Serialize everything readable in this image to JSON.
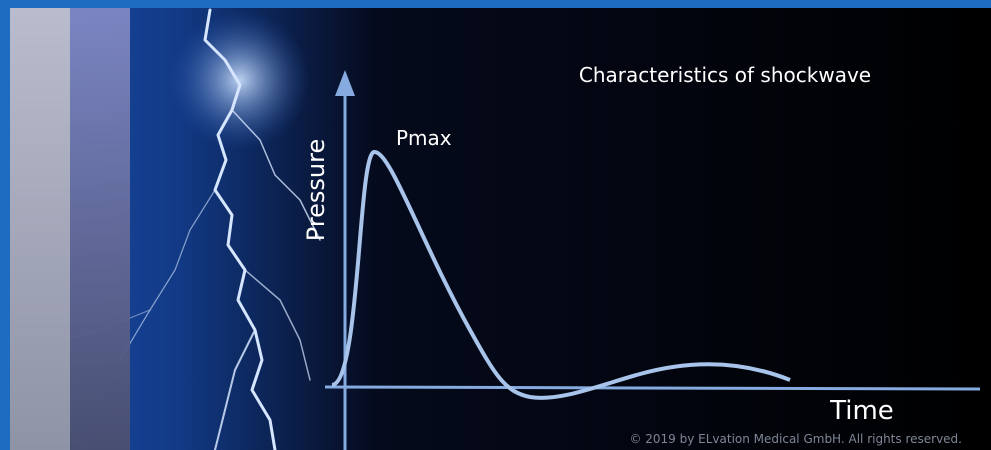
{
  "title": "Characteristics of shockwave",
  "labels": {
    "peak": "Pmax",
    "y_axis": "Pressure",
    "x_axis": "Time"
  },
  "copyright": "© 2019 by ELvation Medical GmbH. All rights reserved."
}
